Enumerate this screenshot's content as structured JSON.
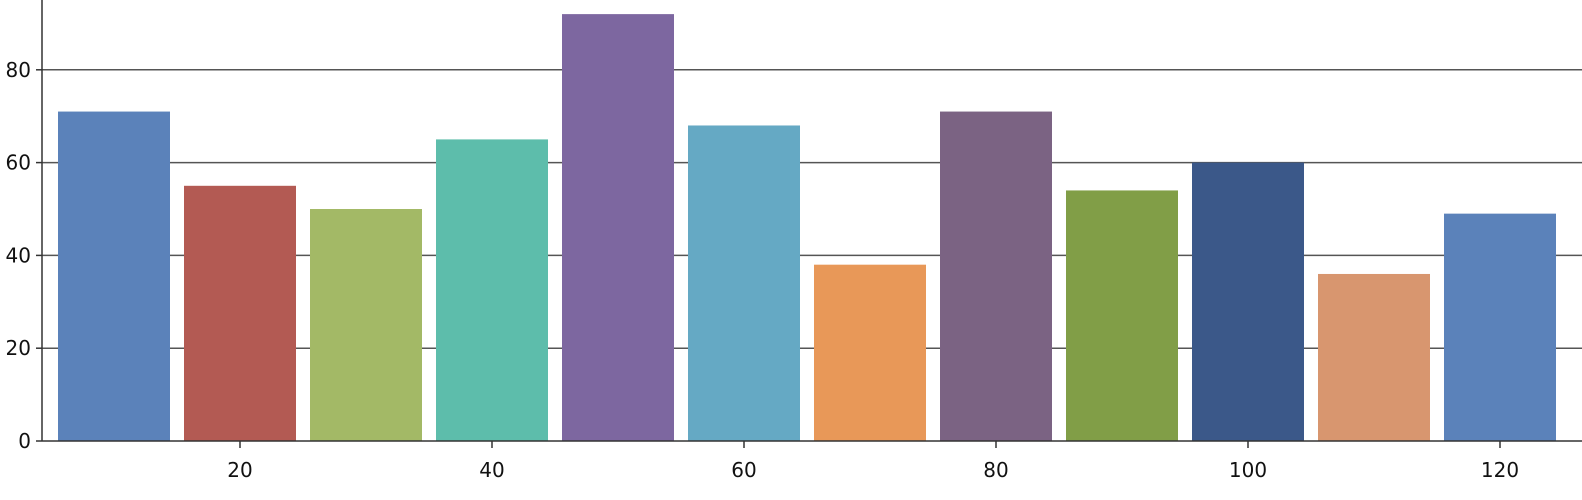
{
  "chart_data": {
    "type": "bar",
    "title": "",
    "xlabel": "",
    "ylabel": "",
    "x": [
      10,
      20,
      30,
      40,
      50,
      60,
      70,
      80,
      90,
      100,
      110,
      120
    ],
    "values": [
      71,
      55,
      50,
      65,
      92,
      68,
      38,
      71,
      54,
      60,
      36,
      49
    ],
    "colors": [
      "#5b82ba",
      "#b35a53",
      "#a3b966",
      "#5dbdab",
      "#7d67a0",
      "#65a9c4",
      "#e89858",
      "#7b6383",
      "#819e47",
      "#3b5889",
      "#d8966f",
      "#5b82ba"
    ],
    "ylim": [
      0,
      92
    ],
    "yticks": [
      0,
      20,
      40,
      60,
      80
    ],
    "xticks": [
      20,
      40,
      60,
      80,
      100,
      120
    ],
    "grid": true,
    "legend": "none"
  }
}
